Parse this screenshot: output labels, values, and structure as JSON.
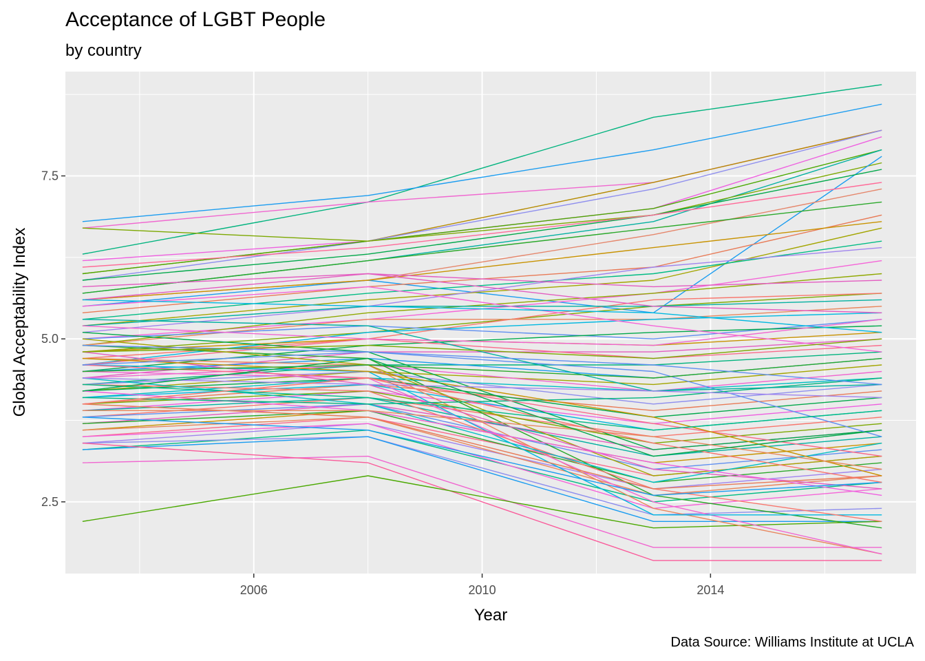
{
  "chart_data": {
    "type": "line",
    "title": "Acceptance of LGBT People",
    "subtitle": "by country",
    "caption": "Data Source: Williams Institute at UCLA",
    "xlabel": "Year",
    "ylabel": "Global Acceptability Index",
    "xlim": [
      2002.7,
      2017.6
    ],
    "ylim": [
      1.4,
      9.1
    ],
    "x_ticks": [
      2006,
      2010,
      2014
    ],
    "x_tick_labels": [
      "2006",
      "2010",
      "2014"
    ],
    "y_ticks": [
      2.5,
      5.0,
      7.5
    ],
    "y_tick_labels": [
      "2.5",
      "5.0",
      "7.5"
    ],
    "grid": true,
    "legend": "none",
    "x": [
      2003,
      2008,
      2013,
      2017
    ],
    "series": [
      {
        "values": [
          6.3,
          7.1,
          8.4,
          8.9
        ],
        "color": "#00b37e"
      },
      {
        "values": [
          6.8,
          7.2,
          7.9,
          8.6
        ],
        "color": "#1a9cf0"
      },
      {
        "values": [
          6.7,
          7.1,
          7.4,
          8.2
        ],
        "color": "#f066d0"
      },
      {
        "values": [
          6.0,
          6.5,
          7.4,
          8.2
        ],
        "color": "#b58a00"
      },
      {
        "values": [
          5.9,
          6.5,
          7.3,
          8.2
        ],
        "color": "#8e8eee"
      },
      {
        "values": [
          6.2,
          6.5,
          7.0,
          8.1
        ],
        "color": "#ee60e0"
      },
      {
        "values": [
          6.0,
          6.5,
          7.0,
          7.9
        ],
        "color": "#4aa800"
      },
      {
        "values": [
          5.7,
          6.2,
          6.8,
          7.9
        ],
        "color": "#00b0a0"
      },
      {
        "values": [
          6.7,
          6.5,
          6.9,
          7.7
        ],
        "color": "#7ca800"
      },
      {
        "values": [
          5.5,
          5.9,
          5.4,
          7.8
        ],
        "color": "#1a9cf0"
      },
      {
        "values": [
          5.9,
          6.3,
          6.9,
          7.6
        ],
        "color": "#00a84a"
      },
      {
        "values": [
          6.1,
          6.4,
          6.9,
          7.4
        ],
        "color": "#ff6a98"
      },
      {
        "values": [
          5.6,
          5.9,
          6.6,
          7.3
        ],
        "color": "#e5866b"
      },
      {
        "values": [
          5.7,
          6.2,
          6.7,
          7.1
        ],
        "color": "#2aa82a"
      },
      {
        "values": [
          5.4,
          5.8,
          6.1,
          6.9
        ],
        "color": "#e87a56"
      },
      {
        "values": [
          5.6,
          5.9,
          6.4,
          6.8
        ],
        "color": "#c89200"
      },
      {
        "values": [
          5.2,
          5.6,
          5.9,
          6.7
        ],
        "color": "#a3a500"
      },
      {
        "values": [
          5.3,
          5.7,
          6.0,
          6.5
        ],
        "color": "#00bc84"
      },
      {
        "values": [
          5.1,
          5.5,
          6.1,
          6.4
        ],
        "color": "#a084ee"
      },
      {
        "values": [
          5.0,
          5.3,
          5.7,
          6.2
        ],
        "color": "#f564d8"
      },
      {
        "values": [
          4.9,
          5.4,
          5.7,
          6.0
        ],
        "color": "#8fa800"
      },
      {
        "values": [
          5.6,
          6.0,
          5.8,
          5.9
        ],
        "color": "#e35cc0"
      },
      {
        "values": [
          4.8,
          5.1,
          5.5,
          5.7
        ],
        "color": "#7ca800"
      },
      {
        "values": [
          4.7,
          5.0,
          5.6,
          5.7
        ],
        "color": "#f8766d"
      },
      {
        "values": [
          5.2,
          5.5,
          5.5,
          5.6
        ],
        "color": "#00b0a0"
      },
      {
        "values": [
          4.9,
          5.3,
          5.3,
          5.5
        ],
        "color": "#e8865c"
      },
      {
        "values": [
          4.6,
          5.1,
          5.3,
          5.4
        ],
        "color": "#00b8e0"
      },
      {
        "values": [
          5.0,
          5.2,
          5.0,
          5.3
        ],
        "color": "#5f8ff0"
      },
      {
        "values": [
          4.5,
          4.9,
          5.1,
          5.2
        ],
        "color": "#00a84a"
      },
      {
        "values": [
          4.8,
          5.0,
          4.9,
          5.1
        ],
        "color": "#c89200"
      },
      {
        "values": [
          4.4,
          4.8,
          4.8,
          5.0
        ],
        "color": "#e35cc0"
      },
      {
        "values": [
          4.6,
          5.0,
          4.7,
          4.9
        ],
        "color": "#fa6a8a"
      },
      {
        "values": [
          4.3,
          4.6,
          4.6,
          4.8
        ],
        "color": "#00b37e"
      },
      {
        "values": [
          4.5,
          4.7,
          4.4,
          4.7
        ],
        "color": "#1a9cf0"
      },
      {
        "values": [
          4.2,
          4.5,
          4.3,
          4.6
        ],
        "color": "#a3a500"
      },
      {
        "values": [
          4.4,
          4.6,
          4.2,
          4.5
        ],
        "color": "#f066d0"
      },
      {
        "values": [
          4.1,
          4.4,
          4.2,
          4.4
        ],
        "color": "#00bfc4"
      },
      {
        "values": [
          4.3,
          4.5,
          4.0,
          4.3
        ],
        "color": "#8e8eee"
      },
      {
        "values": [
          4.0,
          4.3,
          3.9,
          4.2
        ],
        "color": "#e87a56"
      },
      {
        "values": [
          4.2,
          4.4,
          3.8,
          4.1
        ],
        "color": "#00a84a"
      },
      {
        "values": [
          3.9,
          4.2,
          3.7,
          4.0
        ],
        "color": "#ee60e0"
      },
      {
        "values": [
          4.1,
          4.3,
          3.6,
          3.9
        ],
        "color": "#00b8e0"
      },
      {
        "values": [
          3.8,
          4.1,
          3.5,
          3.8
        ],
        "color": "#f8766d"
      },
      {
        "values": [
          4.0,
          4.2,
          3.4,
          3.7
        ],
        "color": "#7ca800"
      },
      {
        "values": [
          3.7,
          4.0,
          3.3,
          3.6
        ],
        "color": "#e35cc0"
      },
      {
        "values": [
          3.9,
          4.1,
          3.2,
          3.5
        ],
        "color": "#00b0a0"
      },
      {
        "values": [
          3.6,
          3.9,
          3.1,
          3.4
        ],
        "color": "#c89200"
      },
      {
        "values": [
          3.8,
          4.0,
          3.0,
          3.3
        ],
        "color": "#5f8ff0"
      },
      {
        "values": [
          3.5,
          3.8,
          2.9,
          3.2
        ],
        "color": "#fa6a8a"
      },
      {
        "values": [
          3.7,
          3.9,
          2.8,
          3.1
        ],
        "color": "#2aa82a"
      },
      {
        "values": [
          3.4,
          3.7,
          2.7,
          3.0
        ],
        "color": "#a084ee"
      },
      {
        "values": [
          3.6,
          3.8,
          2.6,
          2.9
        ],
        "color": "#e8865c"
      },
      {
        "values": [
          3.3,
          3.6,
          2.5,
          2.8
        ],
        "color": "#00bc84"
      },
      {
        "values": [
          3.5,
          3.7,
          2.4,
          2.7
        ],
        "color": "#f564d8"
      },
      {
        "values": [
          3.4,
          3.5,
          2.3,
          2.4
        ],
        "color": "#8e8eee"
      },
      {
        "values": [
          3.3,
          3.5,
          2.2,
          2.2
        ],
        "color": "#1a9cf0"
      },
      {
        "values": [
          3.1,
          3.2,
          1.8,
          1.8
        ],
        "color": "#f066d0"
      },
      {
        "values": [
          3.4,
          3.1,
          1.6,
          1.6
        ],
        "color": "#fa5a9a"
      },
      {
        "values": [
          2.2,
          2.9,
          2.1,
          2.2
        ],
        "color": "#4aa800"
      },
      {
        "values": [
          4.7,
          4.6,
          2.4,
          1.7
        ],
        "color": "#e8865c"
      },
      {
        "values": [
          4.5,
          4.4,
          2.5,
          1.7
        ],
        "color": "#f066d0"
      },
      {
        "values": [
          4.9,
          4.7,
          2.6,
          2.1
        ],
        "color": "#2aa82a"
      },
      {
        "values": [
          4.6,
          4.5,
          2.3,
          2.3
        ],
        "color": "#00b8e0"
      },
      {
        "values": [
          4.3,
          4.2,
          2.7,
          2.2
        ],
        "color": "#f8766d"
      },
      {
        "values": [
          5.0,
          4.6,
          2.9,
          3.2
        ],
        "color": "#a3a500"
      },
      {
        "values": [
          4.8,
          4.3,
          3.0,
          2.7
        ],
        "color": "#e35cc0"
      },
      {
        "values": [
          4.4,
          4.0,
          2.8,
          3.4
        ],
        "color": "#00bfc4"
      },
      {
        "values": [
          4.2,
          3.9,
          3.1,
          2.6
        ],
        "color": "#ee60e0"
      },
      {
        "values": [
          5.1,
          4.8,
          3.3,
          3.6
        ],
        "color": "#00a84a"
      },
      {
        "values": [
          4.0,
          3.8,
          2.7,
          2.9
        ],
        "color": "#e87a56"
      },
      {
        "values": [
          4.9,
          4.8,
          4.5,
          3.5
        ],
        "color": "#5f8ff0"
      },
      {
        "values": [
          4.1,
          4.0,
          4.1,
          4.4
        ],
        "color": "#00b37e"
      },
      {
        "values": [
          4.6,
          4.4,
          3.7,
          3.2
        ],
        "color": "#fa6a8a"
      },
      {
        "values": [
          5.3,
          5.2,
          4.2,
          4.3
        ],
        "color": "#00b0a0"
      },
      {
        "values": [
          4.7,
          4.5,
          3.8,
          2.9
        ],
        "color": "#c89200"
      },
      {
        "values": [
          4.4,
          4.3,
          4.2,
          4.1
        ],
        "color": "#a084ee"
      },
      {
        "values": [
          5.5,
          5.8,
          5.2,
          4.8
        ],
        "color": "#f564d8"
      },
      {
        "values": [
          3.8,
          3.6,
          2.6,
          2.8
        ],
        "color": "#1a9cf0"
      },
      {
        "values": [
          4.5,
          4.6,
          4.4,
          4.7
        ],
        "color": "#2aa82a"
      },
      {
        "values": [
          3.9,
          3.9,
          3.5,
          3.0
        ],
        "color": "#e8865c"
      },
      {
        "values": [
          4.3,
          4.1,
          3.6,
          3.9
        ],
        "color": "#00bc84"
      },
      {
        "values": [
          5.2,
          5.0,
          4.9,
          5.3
        ],
        "color": "#f066d0"
      },
      {
        "values": [
          4.8,
          4.9,
          4.7,
          5.0
        ],
        "color": "#7ca800"
      },
      {
        "values": [
          5.6,
          5.5,
          5.4,
          5.1
        ],
        "color": "#00b8e0"
      },
      {
        "values": [
          4.0,
          4.4,
          3.4,
          2.8
        ],
        "color": "#f8766d"
      },
      {
        "values": [
          4.2,
          4.7,
          3.2,
          3.6
        ],
        "color": "#00a84a"
      },
      {
        "values": [
          5.8,
          6.0,
          5.5,
          5.4
        ],
        "color": "#e35cc0"
      },
      {
        "values": [
          4.6,
          4.8,
          4.6,
          4.3
        ],
        "color": "#5f8ff0"
      }
    ]
  }
}
